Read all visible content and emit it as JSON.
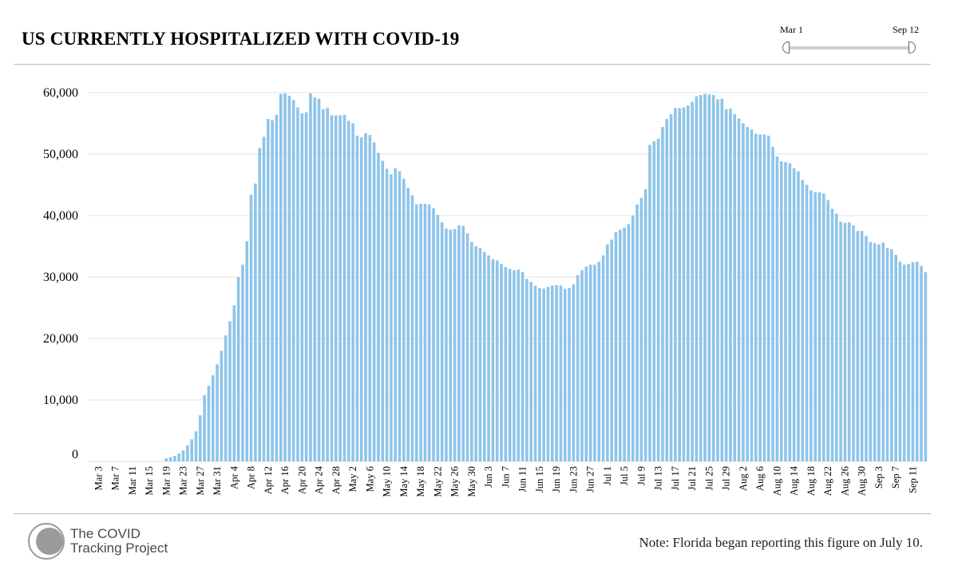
{
  "header": {
    "title": "US CURRENTLY HOSPITALIZED WITH COVID-19"
  },
  "range_slider": {
    "start_label": "Mar 1",
    "end_label": "Sep 12"
  },
  "footer": {
    "logo_line1": "The COVID",
    "logo_line2": "Tracking Project",
    "note": "Note: Florida began reporting this figure on July 10."
  },
  "colors": {
    "bar": "#8ec4ea",
    "grid": "#e3e3e3",
    "rule": "#bdbdbd",
    "logo": "#9b9b9b"
  },
  "chart_data": {
    "type": "bar",
    "title": "US CURRENTLY HOSPITALIZED WITH COVID-19",
    "xlabel": "",
    "ylabel": "",
    "ylim": [
      0,
      60000
    ],
    "yticks": [
      0,
      10000,
      20000,
      30000,
      40000,
      50000,
      60000
    ],
    "ytick_labels": [
      "0",
      "10,000",
      "20,000",
      "30,000",
      "40,000",
      "50,000",
      "60,000"
    ],
    "grid": true,
    "x_start": "Mar 1",
    "x_end": "Sep 12",
    "xtick_labels": [
      "Mar 3",
      "Mar 7",
      "Mar 11",
      "Mar 15",
      "Mar 19",
      "Mar 23",
      "Mar 27",
      "Mar 31",
      "Apr 4",
      "Apr 8",
      "Apr 12",
      "Apr 16",
      "Apr 20",
      "Apr 24",
      "Apr 28",
      "May 2",
      "May 6",
      "May 10",
      "May 14",
      "May 18",
      "May 22",
      "May 26",
      "May 30",
      "Jun 3",
      "Jun 7",
      "Jun 11",
      "Jun 15",
      "Jun 19",
      "Jun 23",
      "Jun 27",
      "Jul 1",
      "Jul 5",
      "Jul 9",
      "Jul 13",
      "Jul 17",
      "Jul 21",
      "Jul 25",
      "Jul 29",
      "Aug 2",
      "Aug 6",
      "Aug 10",
      "Aug 14",
      "Aug 18",
      "Aug 22",
      "Aug 26",
      "Aug 30",
      "Sep 3",
      "Sep 7",
      "Sep 11"
    ],
    "series": [
      {
        "name": "Currently hospitalized",
        "values": [
          0,
          0,
          0,
          0,
          0,
          0,
          0,
          0,
          0,
          0,
          0,
          0,
          0,
          0,
          0,
          0,
          0,
          0,
          500,
          700,
          900,
          1300,
          1800,
          2600,
          3600,
          4900,
          7500,
          10800,
          12300,
          14000,
          15800,
          18000,
          20500,
          22800,
          25400,
          30000,
          32000,
          35800,
          43400,
          45200,
          51000,
          52800,
          55700,
          55500,
          56400,
          59800,
          59900,
          59500,
          58800,
          57600,
          56600,
          56800,
          59900,
          59200,
          59000,
          57300,
          57500,
          56300,
          56300,
          56300,
          56400,
          55400,
          55000,
          53000,
          52700,
          53400,
          53100,
          51900,
          50200,
          48900,
          47600,
          46700,
          47700,
          47200,
          46000,
          44500,
          43300,
          41800,
          41900,
          41900,
          41800,
          41200,
          40100,
          38900,
          37900,
          37700,
          37800,
          38400,
          38300,
          37100,
          35700,
          35000,
          34700,
          34100,
          33500,
          32900,
          32700,
          32100,
          31600,
          31300,
          31100,
          31200,
          30800,
          29700,
          29200,
          28600,
          28200,
          28100,
          28400,
          28600,
          28700,
          28600,
          28100,
          28200,
          28800,
          30300,
          31100,
          31700,
          32000,
          32000,
          32500,
          33500,
          35300,
          36100,
          37300,
          37700,
          38000,
          38600,
          40000,
          41800,
          42900,
          44300,
          51500,
          52100,
          52500,
          54400,
          55700,
          56500,
          57500,
          57500,
          57600,
          57900,
          58500,
          59400,
          59600,
          59800,
          59700,
          59600,
          58900,
          59000,
          57300,
          57400,
          56500,
          55800,
          55000,
          54400,
          54000,
          53300,
          53200,
          53200,
          53000,
          51200,
          49600,
          48800,
          48700,
          48500,
          47700,
          47200,
          45800,
          45000,
          44100,
          43800,
          43800,
          43600,
          42500,
          41100,
          40300,
          39000,
          38800,
          38900,
          38400,
          37500,
          37500,
          36700,
          35700,
          35500,
          35300,
          35600,
          34700,
          34500,
          33600,
          32500,
          32000,
          32100,
          32400,
          32500,
          31800,
          30800
        ]
      }
    ]
  }
}
